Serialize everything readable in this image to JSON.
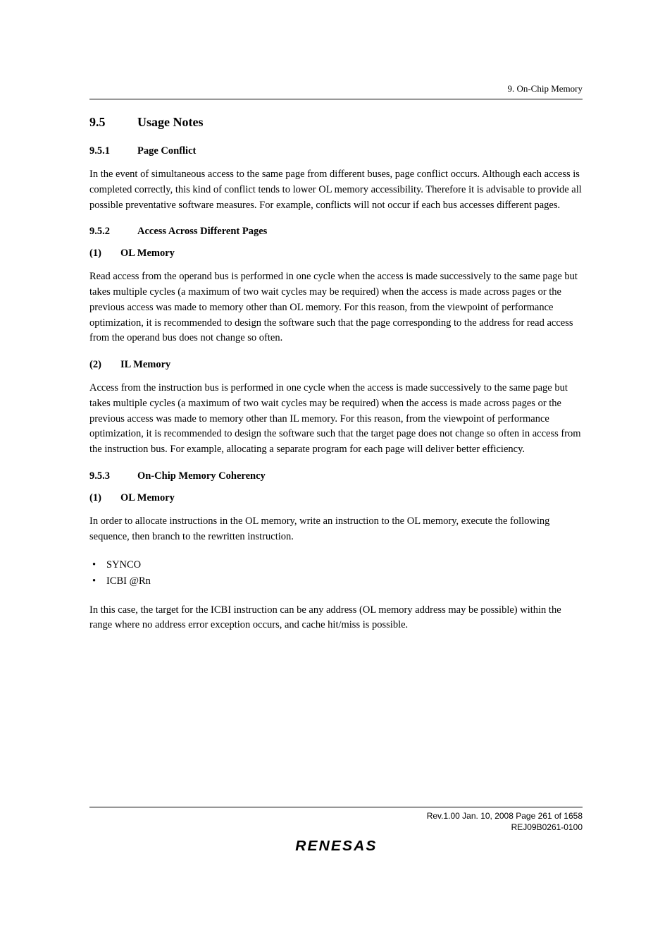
{
  "header": {
    "chapter": "9.   On-Chip Memory"
  },
  "section": {
    "number": "9.5",
    "title": "Usage Notes"
  },
  "sub1": {
    "number": "9.5.1",
    "title": "Page Conflict",
    "para": "In the event of simultaneous access to the same page from different buses, page conflict occurs. Although each access is completed correctly, this kind of conflict tends to lower OL memory accessibility. Therefore it is advisable to provide all possible preventative software measures. For example, conflicts will not occur if each bus accesses different pages."
  },
  "sub2": {
    "number": "9.5.2",
    "title": "Access Across Different Pages",
    "item1": {
      "number": "(1)",
      "title": "OL Memory",
      "para": "Read access from the operand bus is performed in one cycle when the access is made successively to the same page but takes multiple cycles (a maximum of two wait cycles may be required) when the access is made across pages or the previous access was made to memory other than OL memory. For this reason, from the viewpoint of performance optimization, it is recommended to design the software such that the page corresponding to the address for read access from the operand bus does not change so often."
    },
    "item2": {
      "number": "(2)",
      "title": "IL Memory",
      "para": "Access from the instruction bus is performed in one cycle when the access is made successively to the same page but takes multiple cycles (a maximum of two wait cycles may be required) when the access is made across pages or the previous access was made to memory other than IL memory. For this reason, from the viewpoint of performance optimization, it is recommended to design the software such that the target page does not change so often in access from the instruction bus. For example, allocating a separate program for each page will deliver better efficiency."
    }
  },
  "sub3": {
    "number": "9.5.3",
    "title": "On-Chip Memory Coherency",
    "item1": {
      "number": "(1)",
      "title": "OL Memory",
      "para1": "In order to allocate instructions in the OL memory, write an instruction to the OL memory, execute the following sequence, then branch to the rewritten instruction.",
      "bullets": {
        "0": "SYNCO",
        "1": "ICBI @Rn"
      },
      "para2": "In this case, the target for the ICBI instruction can be any address (OL memory address may be possible) within the range where no address error exception occurs, and cache hit/miss is possible."
    }
  },
  "footer": {
    "line1": "Rev.1.00  Jan. 10, 2008  Page 261 of 1658",
    "line2": "REJ09B0261-0100",
    "logo": "RENESAS"
  }
}
